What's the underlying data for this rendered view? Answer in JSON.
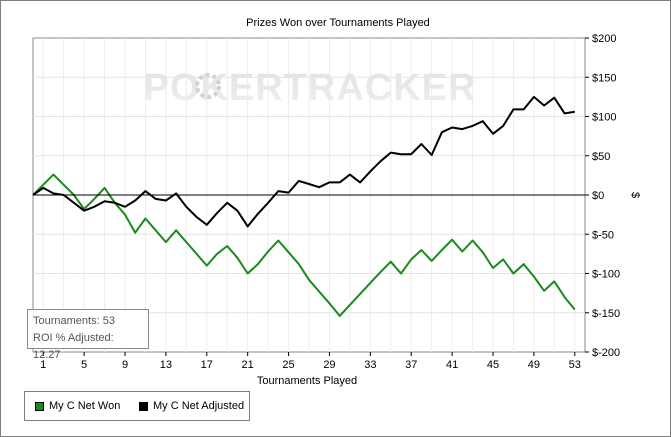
{
  "chart_data": {
    "type": "line",
    "title": "Prizes Won over Tournaments Played",
    "xlabel": "Tournaments Played",
    "ylabel": "$",
    "xlim": [
      0,
      54
    ],
    "ylim": [
      -200,
      200
    ],
    "x_ticks": [
      1,
      5,
      9,
      13,
      17,
      21,
      25,
      29,
      33,
      37,
      41,
      45,
      49,
      53
    ],
    "y_ticks": [
      200,
      150,
      100,
      50,
      0,
      -50,
      -100,
      -150,
      -200
    ],
    "y_tick_labels": [
      "$200",
      "$150",
      "$100",
      "$50",
      "$0",
      "$-50",
      "$-100",
      "$-150",
      "$-200"
    ],
    "y_axis_side": "right",
    "grid": true,
    "watermark": "POKERTRACKER",
    "legend_position": "bottom-left",
    "series": [
      {
        "name": "My C Net Won",
        "color": "#1a8a1a",
        "x": [
          0,
          1,
          2,
          3,
          4,
          5,
          6,
          7,
          8,
          9,
          10,
          11,
          12,
          13,
          14,
          15,
          16,
          17,
          18,
          19,
          20,
          21,
          22,
          23,
          24,
          25,
          26,
          27,
          28,
          29,
          30,
          31,
          32,
          33,
          34,
          35,
          36,
          37,
          38,
          39,
          40,
          41,
          42,
          43,
          44,
          45,
          46,
          47,
          48,
          49,
          50,
          51,
          52,
          53
        ],
        "values": [
          0,
          13,
          26,
          13,
          0,
          -18,
          -5,
          9,
          -10,
          -25,
          -48,
          -30,
          -45,
          -60,
          -45,
          -60,
          -75,
          -90,
          -75,
          -65,
          -80,
          -100,
          -88,
          -72,
          -58,
          -73,
          -88,
          -108,
          -123,
          -138,
          -154,
          -140,
          -126,
          -112,
          -98,
          -85,
          -100,
          -82,
          -70,
          -84,
          -70,
          -57,
          -72,
          -58,
          -73,
          -93,
          -82,
          -100,
          -88,
          -104,
          -122,
          -110,
          -130,
          -146
        ]
      },
      {
        "name": "My C Net Adjusted",
        "color": "#000000",
        "x": [
          0,
          1,
          2,
          3,
          4,
          5,
          6,
          7,
          8,
          9,
          10,
          11,
          12,
          13,
          14,
          15,
          16,
          17,
          18,
          19,
          20,
          21,
          22,
          23,
          24,
          25,
          26,
          27,
          28,
          29,
          30,
          31,
          32,
          33,
          34,
          35,
          36,
          37,
          38,
          39,
          40,
          41,
          42,
          43,
          44,
          45,
          46,
          47,
          48,
          49,
          50,
          51,
          52,
          53
        ],
        "values": [
          0,
          9,
          2,
          0,
          -10,
          -20,
          -15,
          -8,
          -10,
          -15,
          -7,
          5,
          -5,
          -7,
          2,
          -15,
          -28,
          -38,
          -23,
          -10,
          -20,
          -40,
          -24,
          -10,
          5,
          3,
          18,
          14,
          10,
          16,
          16,
          26,
          16,
          30,
          43,
          54,
          52,
          52,
          65,
          51,
          80,
          86,
          84,
          88,
          94,
          78,
          88,
          109,
          109,
          125,
          114,
          124,
          104,
          106
        ]
      }
    ]
  },
  "stats": {
    "tournaments": "Tournaments: 53",
    "roi": "ROI % Adjusted: 12.27"
  }
}
